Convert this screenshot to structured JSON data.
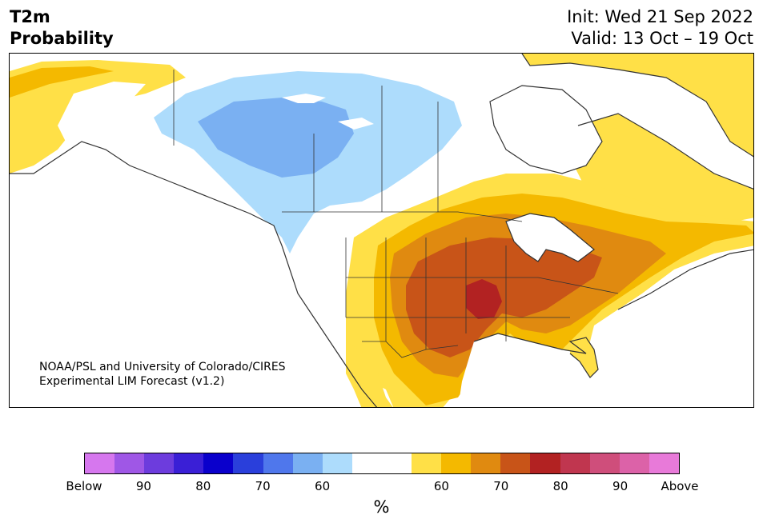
{
  "header": {
    "title_line1": "T2m",
    "title_line2": "Probability",
    "init": "Init: Wed 21 Sep 2022",
    "valid": "Valid: 13 Oct – 19 Oct"
  },
  "map": {
    "credit_line1": "NOAA/PSL and University of Colorado/CIRES",
    "credit_line2": "Experimental LIM Forecast (v1.2)"
  },
  "colorbar": {
    "colors": [
      "#d677ee",
      "#9f57e6",
      "#6d3cdd",
      "#3a1fd6",
      "#0a00cc",
      "#2a3fdb",
      "#4f77ec",
      "#7ab0f2",
      "#addcfc",
      "#ffffff",
      "#ffffff",
      "#ffe047",
      "#f4b900",
      "#e08a10",
      "#c85418",
      "#b22222",
      "#c0364f",
      "#cf4e7b",
      "#dc62a8",
      "#e87ad9"
    ],
    "tick_labels": [
      "Below",
      "90",
      "80",
      "70",
      "60",
      "60",
      "70",
      "80",
      "90",
      "Above"
    ],
    "unit_label": "%"
  },
  "legend_colors": {
    "below_60": "#addcfc",
    "below_70": "#7ab0f2",
    "above_60": "#ffe047",
    "above_65": "#f4b900",
    "above_70": "#e08a10",
    "above_75": "#c85418",
    "above_80": "#b22222"
  }
}
